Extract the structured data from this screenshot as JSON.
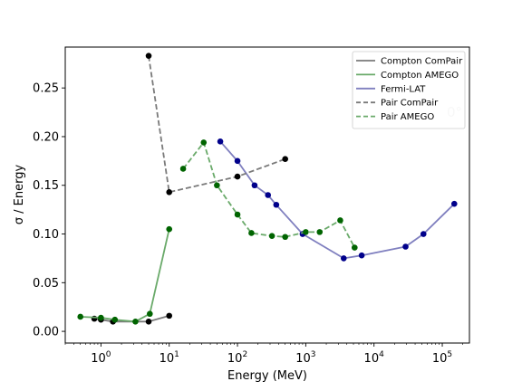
{
  "chart_data": {
    "type": "line",
    "title": "",
    "xlabel": "Energy (MeV)",
    "ylabel": "σ / Energy",
    "x_scale": "log",
    "xlim": [
      0.3,
      250000
    ],
    "ylim": [
      -0.012,
      0.292
    ],
    "grid": false,
    "legend_position": "top-right",
    "annotation": "0°",
    "x_ticks": [
      {
        "value": 1,
        "base": "10",
        "exp": "0"
      },
      {
        "value": 10,
        "base": "10",
        "exp": "1"
      },
      {
        "value": 100,
        "base": "10",
        "exp": "2"
      },
      {
        "value": 1000,
        "base": "10",
        "exp": "3"
      },
      {
        "value": 10000,
        "base": "10",
        "exp": "4"
      },
      {
        "value": 100000,
        "base": "10",
        "exp": "5"
      }
    ],
    "y_ticks": [
      {
        "value": 0.0,
        "label": "0.00"
      },
      {
        "value": 0.05,
        "label": "0.05"
      },
      {
        "value": 0.1,
        "label": "0.10"
      },
      {
        "value": 0.15,
        "label": "0.15"
      },
      {
        "value": 0.2,
        "label": "0.20"
      },
      {
        "value": 0.25,
        "label": "0.25"
      }
    ],
    "series": [
      {
        "name": "Compton ComPair",
        "line_color": "#7a7a7a",
        "marker_color": "#000000",
        "dashed": false,
        "points": [
          [
            0.8,
            0.013
          ],
          [
            1.0,
            0.012
          ],
          [
            1.5,
            0.01
          ],
          [
            5,
            0.01
          ],
          [
            10,
            0.016
          ]
        ]
      },
      {
        "name": "Compton AMEGO",
        "line_color": "#6aaa6a",
        "marker_color": "#006400",
        "dashed": false,
        "points": [
          [
            0.5,
            0.015
          ],
          [
            1.0,
            0.014
          ],
          [
            1.6,
            0.012
          ],
          [
            3.2,
            0.01
          ],
          [
            5.2,
            0.018
          ],
          [
            10,
            0.105
          ]
        ]
      },
      {
        "name": "Fermi-LAT",
        "line_color": "#7f7fbf",
        "marker_color": "#00008b",
        "dashed": false,
        "points": [
          [
            56,
            0.195
          ],
          [
            100,
            0.175
          ],
          [
            178,
            0.15
          ],
          [
            280,
            0.14
          ],
          [
            370,
            0.13
          ],
          [
            900,
            0.1
          ],
          [
            3600,
            0.075
          ],
          [
            6600,
            0.078
          ],
          [
            29000,
            0.087
          ],
          [
            53000,
            0.1
          ],
          [
            150000,
            0.131
          ]
        ]
      },
      {
        "name": "Pair ComPair",
        "line_color": "#7a7a7a",
        "marker_color": "#000000",
        "dashed": true,
        "points": [
          [
            5,
            0.283
          ],
          [
            10,
            0.143
          ],
          [
            100,
            0.159
          ],
          [
            500,
            0.177
          ]
        ]
      },
      {
        "name": "Pair AMEGO",
        "line_color": "#6aaa6a",
        "marker_color": "#006400",
        "dashed": true,
        "points": [
          [
            16,
            0.167
          ],
          [
            32,
            0.194
          ],
          [
            50,
            0.15
          ],
          [
            100,
            0.12
          ],
          [
            160,
            0.101
          ],
          [
            320,
            0.098
          ],
          [
            500,
            0.097
          ],
          [
            1000,
            0.102
          ],
          [
            1600,
            0.102
          ],
          [
            3200,
            0.114
          ],
          [
            5200,
            0.086
          ]
        ]
      }
    ]
  }
}
